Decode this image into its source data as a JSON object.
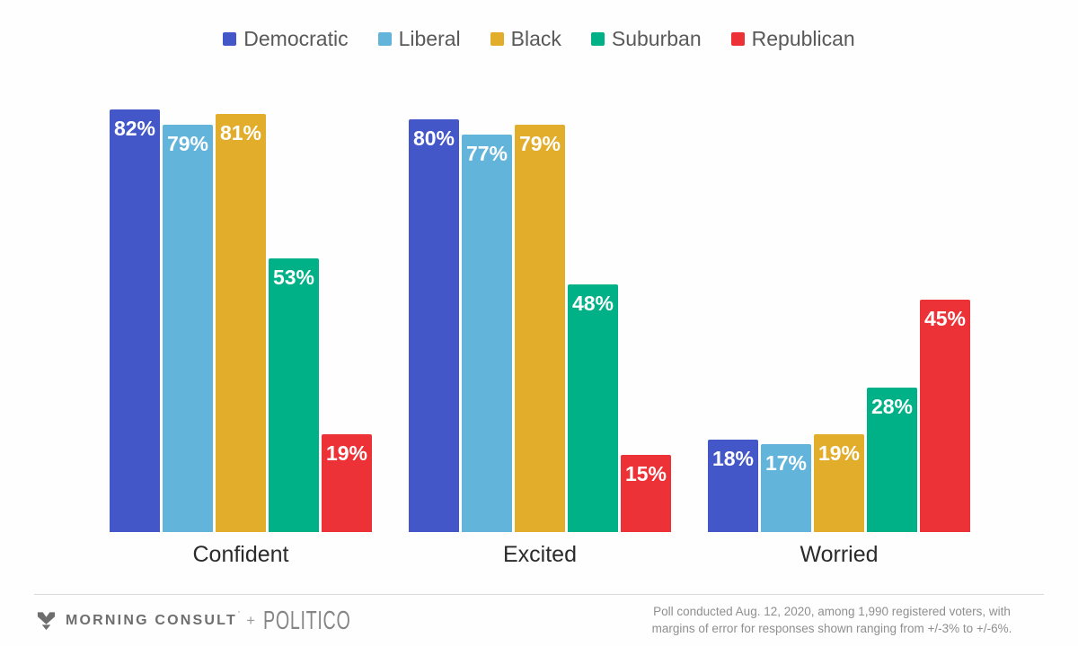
{
  "chart_data": {
    "type": "bar",
    "categories": [
      "Confident",
      "Excited",
      "Worried"
    ],
    "series": [
      {
        "name": "Democratic",
        "color": "#4457c9",
        "values": [
          82,
          80,
          18
        ]
      },
      {
        "name": "Liberal",
        "color": "#63b4da",
        "values": [
          79,
          77,
          17
        ]
      },
      {
        "name": "Black",
        "color": "#e1ad2a",
        "values": [
          81,
          79,
          19
        ]
      },
      {
        "name": "Suburban",
        "color": "#00b187",
        "values": [
          53,
          48,
          28
        ]
      },
      {
        "name": "Republican",
        "color": "#ed3237",
        "values": [
          19,
          15,
          45
        ]
      }
    ],
    "value_suffix": "%",
    "value_labels_shown": true,
    "title": "",
    "xlabel": "",
    "ylabel": "",
    "ylim": [
      0,
      100
    ],
    "grid": false,
    "axis_lines": false,
    "legend_position": "top"
  },
  "footer": {
    "morning_consult_label": "MORNING CONSULT",
    "trademark": "’",
    "plus": "+",
    "politico_label": "POLITICO",
    "note_line1": "Poll conducted Aug. 12, 2020, among 1,990 registered voters, with",
    "note_line2": "margins of error for responses shown ranging from +/-3% to +/-6%."
  }
}
